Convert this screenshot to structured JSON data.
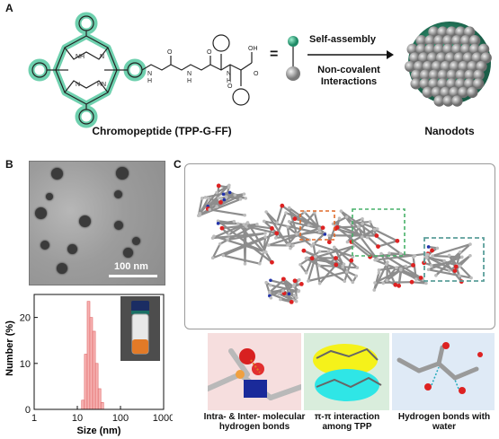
{
  "panelA": {
    "letter": "A",
    "molecule_name": "Chromopeptide (TPP-G-FF)",
    "equals": "=",
    "arrow_top": "Self-assembly",
    "arrow_bottom_1": "Non-covalent",
    "arrow_bottom_2": "Interactions",
    "nanodots_label": "Nanodots",
    "atoms": {
      "NH1": "NH",
      "N1": "N",
      "N2": "N",
      "HN": "HN",
      "H1": "H",
      "H2": "H",
      "H3": "H",
      "O1": "O",
      "O2": "O",
      "O3": "O",
      "OH": "OH",
      "N3": "N",
      "N4": "N",
      "N5": "N",
      "O4": "O"
    }
  },
  "panelB": {
    "letter": "B",
    "scale_bar": "100 nm",
    "chart_data": {
      "type": "bar",
      "xlabel": "Size (nm)",
      "ylabel": "Number (%)",
      "xscale": "log",
      "xlim": [
        1,
        1000
      ],
      "ylim": [
        0,
        25
      ],
      "x_ticks": [
        "1",
        "10",
        "100",
        "1000"
      ],
      "y_ticks": [
        "0",
        "10",
        "20"
      ],
      "bins": [
        {
          "x": 13.5,
          "y": 2
        },
        {
          "x": 15.7,
          "y": 12
        },
        {
          "x": 18.2,
          "y": 23.5
        },
        {
          "x": 21.0,
          "y": 20
        },
        {
          "x": 24.4,
          "y": 17
        },
        {
          "x": 28.2,
          "y": 10
        },
        {
          "x": 32.7,
          "y": 4.5
        },
        {
          "x": 37.8,
          "y": 1.5
        }
      ]
    }
  },
  "panelC": {
    "letter": "C",
    "sub1": {
      "line1": "Intra- & Inter- molecular",
      "line2": "hydrogen bonds"
    },
    "sub2": {
      "line1": "π-π interaction",
      "line2": "among TPP"
    },
    "sub3": {
      "line1": "Hydrogen bonds with",
      "line2": "water"
    }
  }
}
